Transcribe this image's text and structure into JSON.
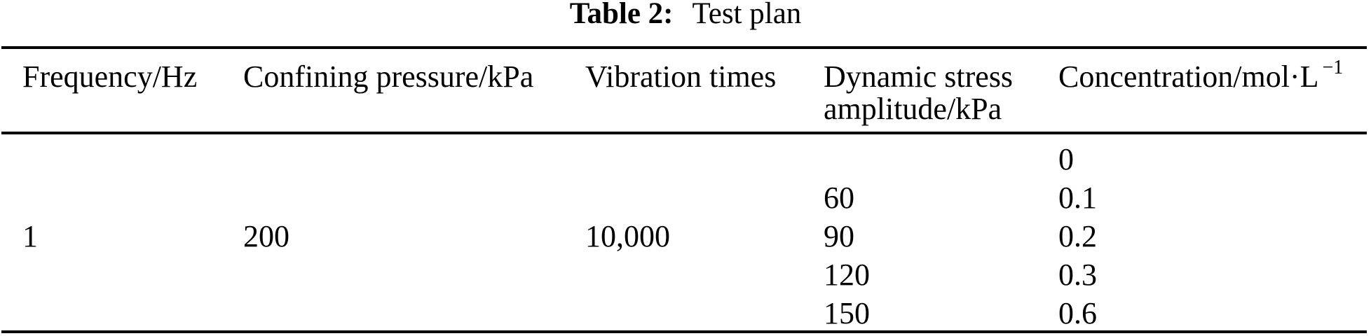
{
  "caption": {
    "label": "Table 2:",
    "title": "Test plan"
  },
  "table": {
    "headers": [
      "Frequency/Hz",
      "Confining pressure/kPa",
      "Vibration times",
      {
        "lines": [
          "Dynamic stress",
          "amplitude/kPa"
        ]
      },
      {
        "base": "Concentration/mol·L",
        "sup": "−1"
      }
    ],
    "rows": [
      {
        "cells": [
          "",
          "",
          "",
          "",
          "0"
        ]
      },
      {
        "cells": [
          "",
          "",
          "",
          "60",
          "0.1"
        ]
      },
      {
        "cells": [
          "1",
          "200",
          "10,000",
          "90",
          "0.2"
        ]
      },
      {
        "cells": [
          "",
          "",
          "",
          "120",
          "0.3"
        ]
      },
      {
        "cells": [
          "",
          "",
          "",
          "150",
          "0.6"
        ]
      }
    ]
  },
  "chart_data": {
    "type": "table",
    "title": "Table 2: Test plan",
    "columns": [
      "Frequency/Hz",
      "Confining pressure/kPa",
      "Vibration times",
      "Dynamic stress amplitude/kPa",
      "Concentration/mol·L−1"
    ],
    "frequency_hz": 1,
    "confining_pressure_kpa": 200,
    "vibration_times": "10,000",
    "dynamic_stress_amplitude_kpa": [
      60,
      90,
      120,
      150
    ],
    "concentration_mol_per_l": [
      0,
      0.1,
      0.2,
      0.3,
      0.6
    ]
  },
  "colors": {
    "text": "#000000",
    "rule": "#000000",
    "background": "#ffffff"
  }
}
